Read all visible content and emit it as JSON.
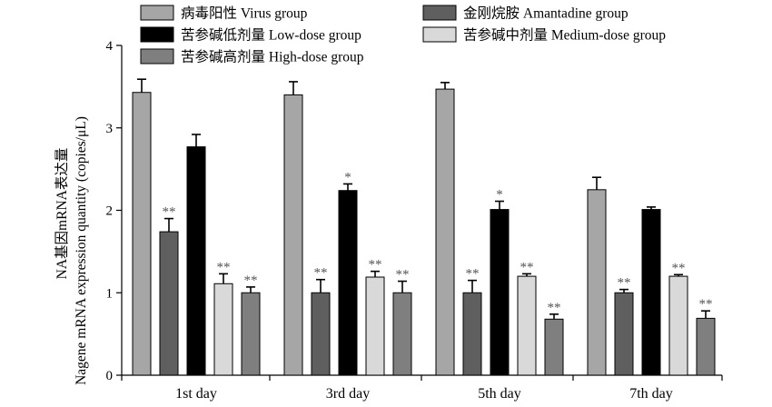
{
  "chart_data": {
    "type": "bar",
    "title": "",
    "ylabel_line1": "NA基因mRNA表达量",
    "ylabel_line2": "Nagene mRNA expression quantity (copies/μL)",
    "xlabel": "",
    "ylim": [
      0,
      4
    ],
    "yticks": [
      0,
      1,
      2,
      3,
      4
    ],
    "categories": [
      "1st day",
      "3rd day",
      "5th day",
      "7th day"
    ],
    "legend_position": "top",
    "series": [
      {
        "name": "病毒阳性 Virus group",
        "color": "#a6a6a6",
        "values": [
          3.43,
          3.4,
          3.47,
          2.25
        ],
        "errors": [
          0.16,
          0.16,
          0.08,
          0.15
        ],
        "sig": [
          "",
          "",
          "",
          ""
        ]
      },
      {
        "name": "金刚烷胺 Amantadine group",
        "color": "#5f5f5f",
        "values": [
          1.74,
          1.0,
          1.0,
          1.0
        ],
        "errors": [
          0.16,
          0.16,
          0.15,
          0.04
        ],
        "sig": [
          "**",
          "**",
          "**",
          "**"
        ]
      },
      {
        "name": "苦参碱低剂量 Low-dose group",
        "color": "#000000",
        "values": [
          2.77,
          2.24,
          2.01,
          2.01
        ],
        "errors": [
          0.15,
          0.08,
          0.1,
          0.03
        ],
        "sig": [
          "",
          "*",
          "*",
          ""
        ]
      },
      {
        "name": "苦参碱中剂量 Medium-dose group",
        "color": "#d9d9d9",
        "values": [
          1.11,
          1.19,
          1.2,
          1.2
        ],
        "errors": [
          0.12,
          0.07,
          0.03,
          0.02
        ],
        "sig": [
          "**",
          "**",
          "**",
          "**"
        ]
      },
      {
        "name": "苦参碱高剂量 High-dose group",
        "color": "#7f7f7f",
        "values": [
          1.0,
          1.0,
          0.68,
          0.69
        ],
        "errors": [
          0.07,
          0.14,
          0.06,
          0.09
        ],
        "sig": [
          "**",
          "**",
          "**",
          "**"
        ]
      }
    ]
  }
}
